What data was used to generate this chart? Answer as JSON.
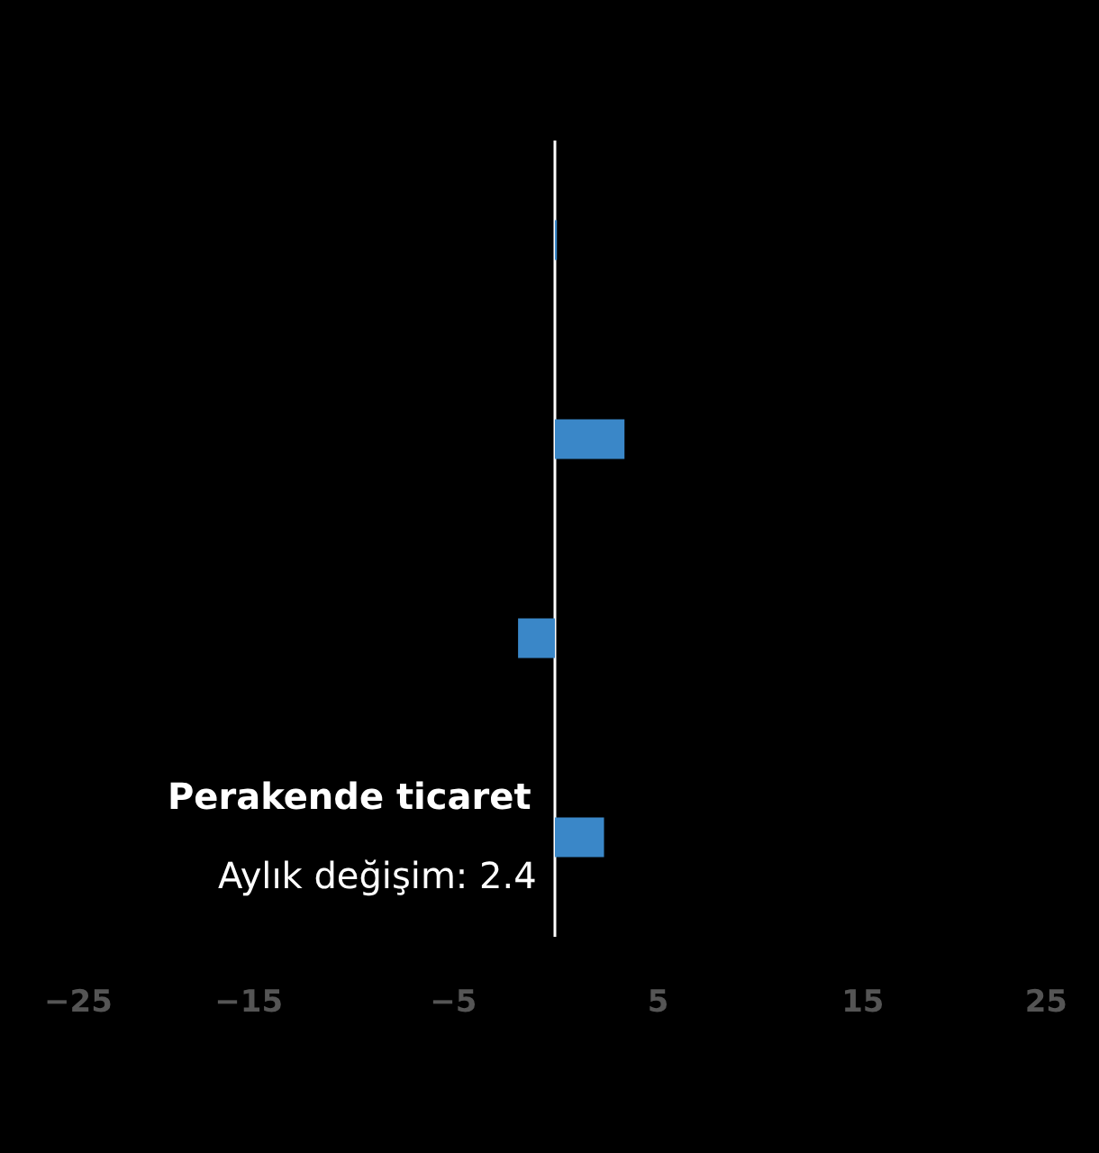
{
  "chart_data": {
    "type": "bar",
    "orientation": "horizontal",
    "categories": [
      null,
      null,
      null,
      null
    ],
    "series": [
      {
        "color": "#3a87c8",
        "values": [
          0.1,
          3.4,
          -1.8,
          2.4
        ]
      }
    ],
    "xlim": [
      -25,
      25
    ],
    "xticks": [
      -25,
      -15,
      -5,
      5,
      15,
      25
    ],
    "grid": false,
    "ref_lines": [
      {
        "axis": "x",
        "value": 0,
        "color": "#ffffff"
      }
    ],
    "annotations": [
      "Perakende ticaret",
      "Aylık değişim: 2.4"
    ]
  }
}
